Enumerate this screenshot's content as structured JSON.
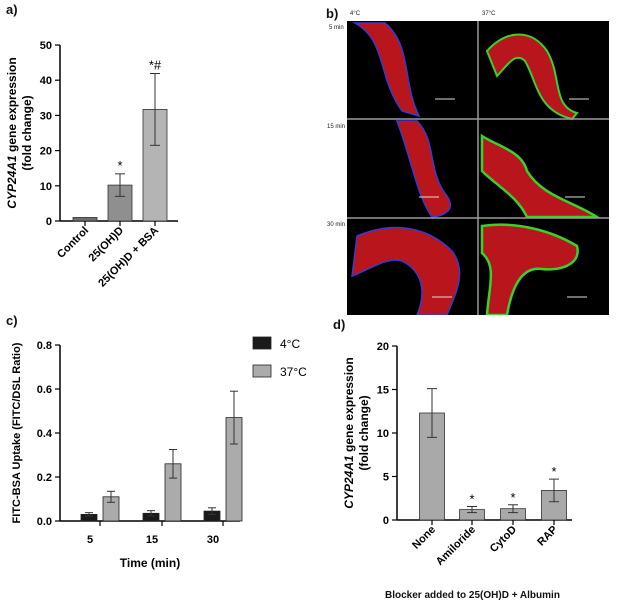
{
  "panels": {
    "a": "a)",
    "b": "b)",
    "c": "c)",
    "d": "d)"
  },
  "chart_a": {
    "type": "bar",
    "categories": [
      "Control",
      "25(OH)D",
      "25(OH)D + BSA"
    ],
    "values": [
      1,
      10.2,
      31.7
    ],
    "errors": [
      0.3,
      3.2,
      10.2
    ],
    "marks": [
      "",
      "*",
      "*#"
    ],
    "ylabel_gene": "CYP24A1",
    "ylabel_rest": " gene expression",
    "ylabel_line2": "(fold change)",
    "yticks": [
      "0",
      "10",
      "20",
      "30",
      "40",
      "50"
    ],
    "ylim": [
      0,
      50
    ],
    "colors": [
      "#6e6e6e",
      "#8f8f8f",
      "#b4b4b4"
    ]
  },
  "chart_c": {
    "type": "bar",
    "categories": [
      "5",
      "15",
      "30"
    ],
    "series": [
      {
        "name": "4°C",
        "values": [
          0.03,
          0.035,
          0.045
        ],
        "errors": [
          0.008,
          0.012,
          0.015
        ],
        "color": "#1a1a1a"
      },
      {
        "name": "37°C",
        "values": [
          0.11,
          0.26,
          0.47
        ],
        "errors": [
          0.025,
          0.065,
          0.12
        ],
        "color": "#ababab"
      }
    ],
    "xlabel": "Time (min)",
    "ylabel": "FITC-BSA Uptake (FITC/DSL Ratio)",
    "yticks": [
      "0.0",
      "0.2",
      "0.4",
      "0.6",
      "0.8"
    ],
    "ylim": [
      0,
      0.8
    ],
    "legend_position": "top-right"
  },
  "chart_d": {
    "type": "bar",
    "categories": [
      "None",
      "Amiloride",
      "CytoD",
      "RAP"
    ],
    "values": [
      12.3,
      1.2,
      1.3,
      3.4
    ],
    "errors": [
      2.8,
      0.35,
      0.45,
      1.3
    ],
    "marks": [
      "",
      "*",
      "*",
      "*"
    ],
    "ylabel_gene": "CYP24A1",
    "ylabel_rest": " gene expression",
    "ylabel_line2": "(fold change)",
    "yticks": [
      "0",
      "5",
      "10",
      "15",
      "20"
    ],
    "ylim": [
      0,
      20
    ],
    "caption": "Blocker added to 25(OH)D + Albumin",
    "color": "#a9a9a9"
  },
  "micrograph": {
    "col_labels": [
      "4°C",
      "37°C"
    ],
    "row_labels": [
      "5 min",
      "15 min",
      "30 min"
    ],
    "colors": {
      "tissue": "#c4161c",
      "edge": "#3a3acc",
      "signal": "#39d12c",
      "background": "#000000"
    }
  }
}
